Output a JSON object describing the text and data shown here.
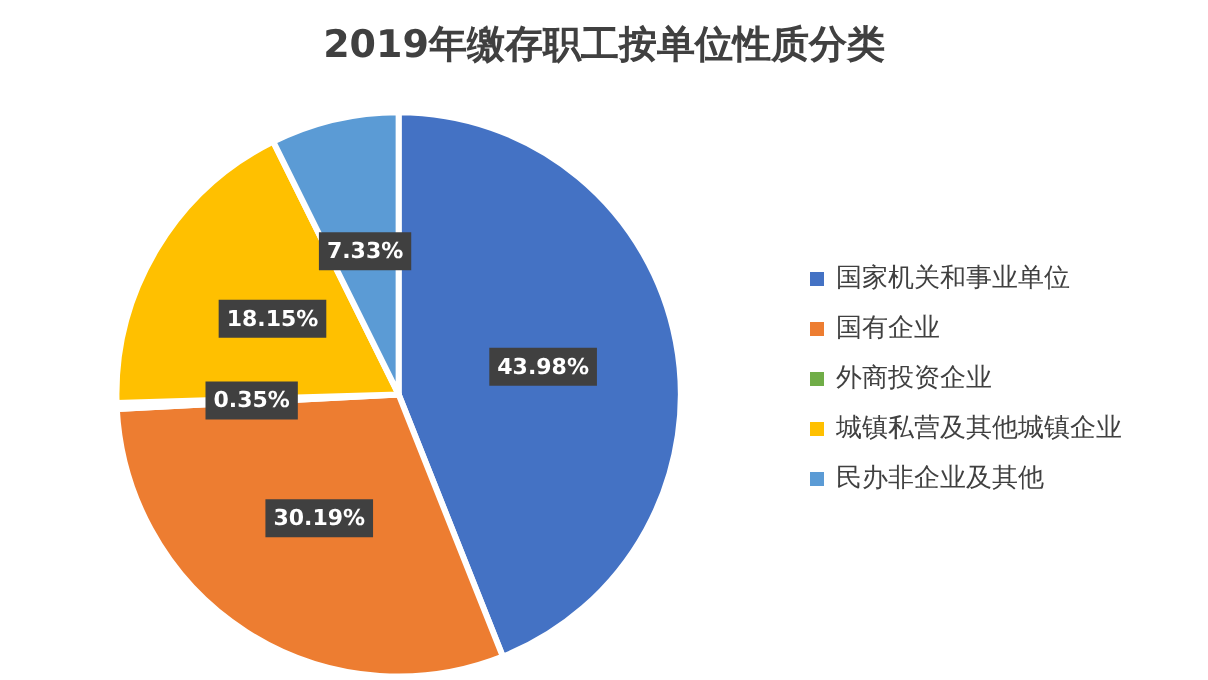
{
  "chart_data": {
    "type": "pie",
    "title": "2019年缴存职工按单位性质分类",
    "categories": [
      "国家机关和事业单位",
      "国有企业",
      "外商投资企业",
      "城镇私营及其他城镇企业",
      "民办非企业及其他"
    ],
    "values": [
      43.98,
      30.19,
      0.35,
      18.15,
      7.33
    ],
    "colors": [
      "#4472c4",
      "#ed7d31",
      "#70ad47",
      "#ffc000",
      "#5b9bd5"
    ],
    "value_labels": [
      "43.98%",
      "30.19%",
      "0.35%",
      "18.15%",
      "7.33%"
    ],
    "legend": "right"
  }
}
